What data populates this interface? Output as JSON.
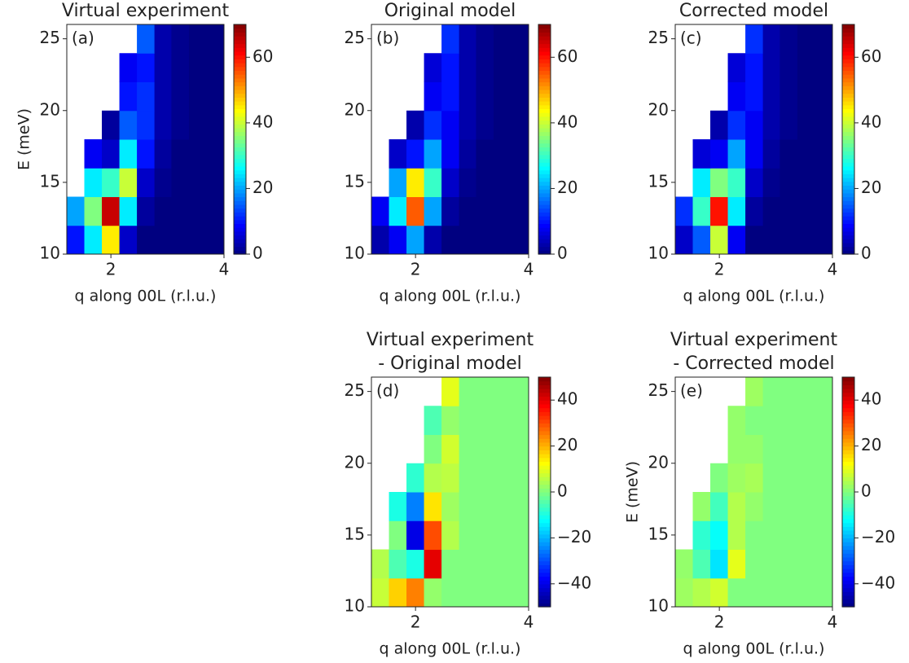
{
  "chart_data": [
    {
      "type": "heatmap",
      "title": [
        "Virtual experiment"
      ],
      "panel_label": "(a)",
      "x_label": "q along 00L (r.l.u.)",
      "y_label": "E (meV)",
      "colormap": "jet",
      "xbins": [
        1.22,
        1.53,
        1.84,
        2.15,
        2.46,
        2.77,
        3.07,
        3.38,
        3.69,
        4.0
      ],
      "ybins": [
        10,
        12,
        14,
        16,
        18,
        20,
        22,
        24,
        26
      ],
      "z": [
        [
          10,
          25,
          45,
          5,
          0,
          0,
          0,
          0,
          0
        ],
        [
          20,
          35,
          65,
          25,
          2,
          0,
          0,
          0,
          0
        ],
        [
          null,
          25,
          30,
          40,
          5,
          1,
          0,
          0,
          0
        ],
        [
          null,
          8,
          5,
          25,
          10,
          2,
          0,
          0,
          0
        ],
        [
          null,
          null,
          2,
          15,
          12,
          3,
          1,
          0,
          0
        ],
        [
          null,
          null,
          null,
          10,
          12,
          3,
          1,
          0,
          0
        ],
        [
          null,
          null,
          null,
          8,
          10,
          3,
          1,
          0,
          0
        ],
        [
          null,
          null,
          null,
          null,
          15,
          3,
          1,
          0,
          0
        ]
      ],
      "xlim": [
        1.22,
        4
      ],
      "ylim": [
        10,
        26
      ],
      "xticks": [
        2,
        4
      ],
      "yticks": [
        10,
        15,
        20,
        25
      ],
      "colorbar": {
        "lim": [
          0,
          70
        ],
        "ticks": [
          0,
          20,
          40,
          60
        ]
      }
    },
    {
      "type": "heatmap",
      "title": [
        "Original model"
      ],
      "panel_label": "(b)",
      "x_label": "q along 00L (r.l.u.)",
      "colormap": "jet",
      "xbins": [
        1.22,
        1.53,
        1.84,
        2.15,
        2.46,
        2.77,
        3.07,
        3.38,
        3.69,
        4.0
      ],
      "ybins": [
        10,
        12,
        14,
        16,
        18,
        20,
        22,
        24,
        26
      ],
      "z": [
        [
          3,
          8,
          20,
          3,
          0,
          0,
          0,
          0,
          0
        ],
        [
          8,
          25,
          55,
          20,
          2,
          0,
          0,
          0,
          0
        ],
        [
          null,
          20,
          45,
          30,
          5,
          1,
          0,
          0,
          0
        ],
        [
          null,
          5,
          10,
          20,
          8,
          2,
          0,
          0,
          0
        ],
        [
          null,
          null,
          3,
          12,
          8,
          3,
          1,
          0,
          0
        ],
        [
          null,
          null,
          null,
          8,
          10,
          3,
          1,
          0,
          0
        ],
        [
          null,
          null,
          null,
          6,
          10,
          3,
          1,
          0,
          0
        ],
        [
          null,
          null,
          null,
          null,
          12,
          3,
          1,
          0,
          0
        ]
      ],
      "xlim": [
        1.22,
        4
      ],
      "ylim": [
        10,
        26
      ],
      "xticks": [
        2,
        4
      ],
      "yticks": [
        10,
        15,
        20,
        25
      ],
      "colorbar": {
        "lim": [
          0,
          70
        ],
        "ticks": [
          0,
          20,
          40,
          60
        ]
      }
    },
    {
      "type": "heatmap",
      "title": [
        "Corrected model"
      ],
      "panel_label": "(c)",
      "x_label": "q along 00L (r.l.u.)",
      "colormap": "jet",
      "xbins": [
        1.22,
        1.53,
        1.84,
        2.15,
        2.46,
        2.77,
        3.07,
        3.38,
        3.69,
        4.0
      ],
      "ybins": [
        10,
        12,
        14,
        16,
        18,
        20,
        22,
        24,
        26
      ],
      "z": [
        [
          5,
          15,
          40,
          8,
          0,
          0,
          0,
          0,
          0
        ],
        [
          12,
          30,
          60,
          25,
          2,
          0,
          0,
          0,
          0
        ],
        [
          null,
          25,
          35,
          30,
          5,
          1,
          0,
          0,
          0
        ],
        [
          null,
          6,
          8,
          20,
          8,
          2,
          0,
          0,
          0
        ],
        [
          null,
          null,
          3,
          12,
          8,
          3,
          1,
          0,
          0
        ],
        [
          null,
          null,
          null,
          8,
          10,
          3,
          1,
          0,
          0
        ],
        [
          null,
          null,
          null,
          6,
          10,
          3,
          1,
          0,
          0
        ],
        [
          null,
          null,
          null,
          null,
          12,
          3,
          1,
          0,
          0
        ]
      ],
      "xlim": [
        1.22,
        4
      ],
      "ylim": [
        10,
        26
      ],
      "xticks": [
        2,
        4
      ],
      "yticks": [
        10,
        15,
        20,
        25
      ],
      "colorbar": {
        "lim": [
          0,
          70
        ],
        "ticks": [
          0,
          20,
          40,
          60
        ]
      }
    },
    {
      "type": "heatmap",
      "title": [
        "Virtual experiment",
        "- Original model"
      ],
      "panel_label": "(d)",
      "x_label": "q along 00L (r.l.u.)",
      "colormap": "jet",
      "xbins": [
        1.22,
        1.53,
        1.84,
        2.15,
        2.46,
        2.77,
        3.07,
        3.38,
        3.69,
        4.0
      ],
      "ybins": [
        10,
        12,
        14,
        16,
        18,
        20,
        22,
        24,
        26
      ],
      "z": [
        [
          7,
          17,
          25,
          2,
          0,
          0,
          0,
          0,
          0
        ],
        [
          5,
          -5,
          -10,
          40,
          0,
          0,
          0,
          0,
          0
        ],
        [
          null,
          0,
          -40,
          30,
          5,
          0,
          0,
          0,
          0
        ],
        [
          null,
          -10,
          -25,
          15,
          3,
          0,
          0,
          0,
          0
        ],
        [
          null,
          null,
          -8,
          5,
          6,
          0,
          0,
          0,
          0
        ],
        [
          null,
          null,
          null,
          0,
          8,
          0,
          0,
          0,
          0
        ],
        [
          null,
          null,
          null,
          -5,
          2,
          0,
          0,
          0,
          0
        ],
        [
          null,
          null,
          null,
          null,
          10,
          0,
          0,
          0,
          0
        ]
      ],
      "xlim": [
        1.22,
        4
      ],
      "ylim": [
        10,
        26
      ],
      "xticks": [
        2,
        4
      ],
      "yticks": [
        10,
        15,
        20,
        25
      ],
      "colorbar": {
        "lim": [
          -50,
          50
        ],
        "ticks": [
          {
            "value": -40,
            "label": "−40"
          },
          {
            "value": -20,
            "label": "−20"
          },
          0,
          20,
          40
        ]
      }
    },
    {
      "type": "heatmap",
      "title": [
        "Virtual experiment",
        "- Corrected model"
      ],
      "panel_label": "(e)",
      "x_label": "q along 00L (r.l.u.)",
      "y_label": "E (meV)",
      "colormap": "jet",
      "xbins": [
        1.22,
        1.53,
        1.84,
        2.15,
        2.46,
        2.77,
        3.07,
        3.38,
        3.69,
        4.0
      ],
      "ybins": [
        10,
        12,
        14,
        16,
        18,
        20,
        22,
        24,
        26
      ],
      "z": [
        [
          3,
          5,
          8,
          0,
          0,
          0,
          0,
          0,
          0
        ],
        [
          2,
          -5,
          -15,
          10,
          0,
          0,
          0,
          0,
          0
        ],
        [
          null,
          -8,
          -12,
          5,
          0,
          0,
          0,
          0,
          0
        ],
        [
          null,
          2,
          -6,
          5,
          2,
          0,
          0,
          0,
          0
        ],
        [
          null,
          null,
          0,
          3,
          4,
          0,
          0,
          0,
          0
        ],
        [
          null,
          null,
          null,
          2,
          2,
          0,
          0,
          0,
          0
        ],
        [
          null,
          null,
          null,
          2,
          0,
          0,
          0,
          0,
          0
        ],
        [
          null,
          null,
          null,
          null,
          3,
          0,
          0,
          0,
          0
        ]
      ],
      "xlim": [
        1.22,
        4
      ],
      "ylim": [
        10,
        26
      ],
      "xticks": [
        2,
        4
      ],
      "yticks": [
        10,
        15,
        20,
        25
      ],
      "colorbar": {
        "lim": [
          -50,
          50
        ],
        "ticks": [
          {
            "value": -40,
            "label": "−40"
          },
          {
            "value": -20,
            "label": "−20"
          },
          0,
          20,
          40
        ]
      }
    }
  ]
}
